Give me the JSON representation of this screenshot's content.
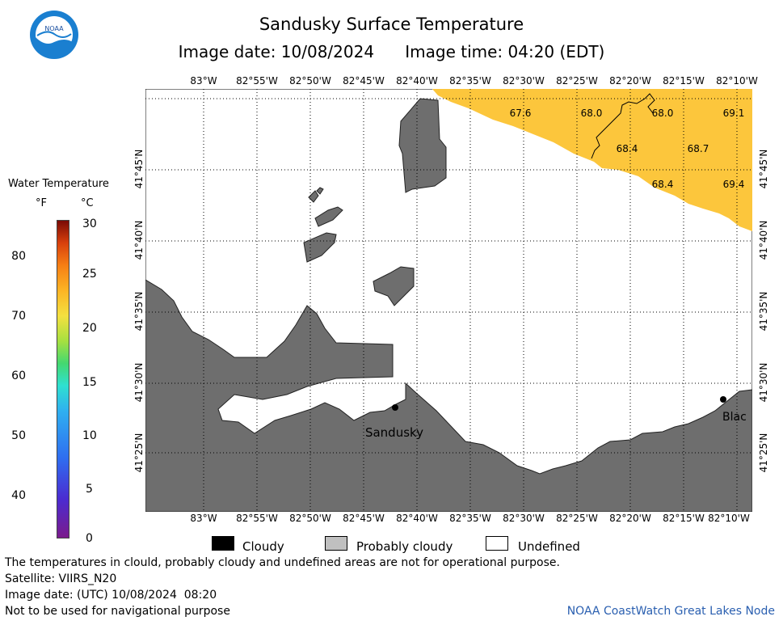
{
  "header": {
    "title": "Sandusky Surface Temperature",
    "image_date_label": "Image date: 10/08/2024",
    "image_time_label": "Image time: 04:20 (EDT)"
  },
  "legend": {
    "title": "Water Temperature",
    "unit_f": "°F",
    "unit_c": "°C",
    "f_ticks": [
      "80",
      "70",
      "60",
      "50",
      "40"
    ],
    "c_ticks": [
      "30",
      "25",
      "20",
      "15",
      "10",
      "5",
      "0"
    ],
    "items": [
      {
        "label": "Cloudy",
        "color": "#000000"
      },
      {
        "label": "Probably cloudy",
        "color": "#c0c0c0"
      },
      {
        "label": "Undefined",
        "color": "#ffffff"
      }
    ]
  },
  "map": {
    "lon_labels": [
      "83°W",
      "82°55'W",
      "82°50'W",
      "82°45'W",
      "82°40'W",
      "82°35'W",
      "82°30'W",
      "82°25'W",
      "82°20'W",
      "82°15'W",
      "82°10'W"
    ],
    "lat_labels": [
      "41°45'N",
      "41°40'N",
      "41°35'N",
      "41°30'N",
      "41°25'N"
    ],
    "temps": [
      "67.6",
      "68.0",
      "68.0",
      "69.1",
      "68.4",
      "68.7",
      "68.4",
      "69.4"
    ],
    "cities": [
      "Sandusky",
      "Blac"
    ],
    "colors": {
      "land": "#6e6e6e",
      "water_warm": "#fcc63c",
      "grid": "#000000"
    }
  },
  "footer": {
    "line1": "The temperatures in clould, probably cloudy and undefined areas are not for operational purpose.",
    "line2": "Satellite: VIIRS_N20",
    "line3": "Image date: (UTC) 10/08/2024  08:20",
    "line4": "Not to be used for navigational purpose",
    "node": "NOAA CoastWatch Great Lakes Node"
  }
}
